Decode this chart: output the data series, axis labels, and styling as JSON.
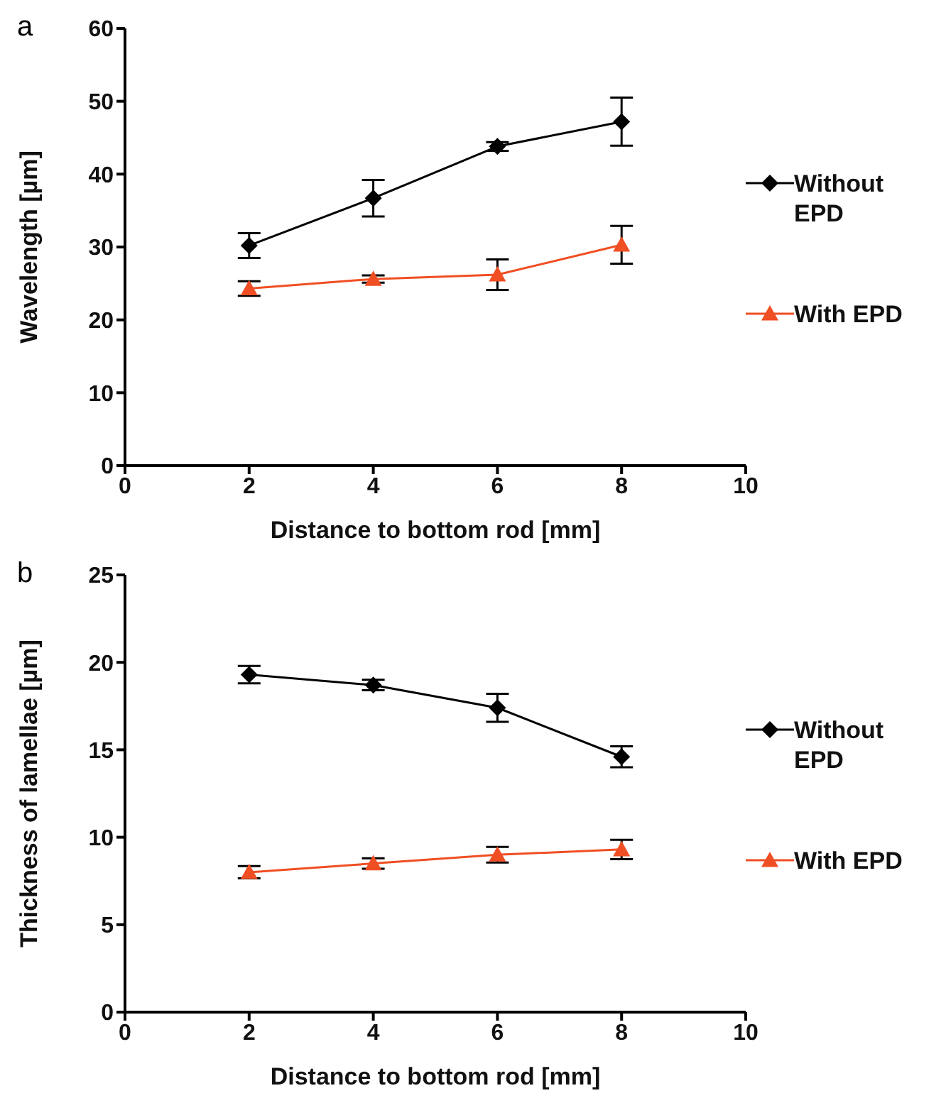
{
  "chart_data": [
    {
      "type": "line",
      "title": "a",
      "xlabel": "Distance to bottom rod [mm]",
      "ylabel": "Wavelength [µm]",
      "x": [
        2,
        4,
        6,
        8
      ],
      "xlim": [
        0,
        10
      ],
      "xticks": [
        0,
        2,
        4,
        6,
        8,
        10
      ],
      "ylim": [
        0,
        60
      ],
      "yticks": [
        0,
        10,
        20,
        30,
        40,
        50,
        60
      ],
      "grid": false,
      "legend": "right",
      "series": [
        {
          "name": "Without EPD",
          "color": "#000000",
          "marker": "diamond",
          "values": [
            30.2,
            36.7,
            43.8,
            47.2
          ],
          "errors": [
            1.7,
            2.5,
            0.6,
            3.3
          ]
        },
        {
          "name": "With EPD",
          "color": "#f04e23",
          "marker": "triangle",
          "values": [
            24.3,
            25.6,
            26.2,
            30.3
          ],
          "errors": [
            1.0,
            0.5,
            2.1,
            2.6
          ]
        }
      ]
    },
    {
      "type": "line",
      "title": "b",
      "xlabel": "Distance to bottom rod [mm]",
      "ylabel": "Thickness of lamellae [µm]",
      "x": [
        2,
        4,
        6,
        8
      ],
      "xlim": [
        0,
        10
      ],
      "xticks": [
        0,
        2,
        4,
        6,
        8,
        10
      ],
      "ylim": [
        0,
        25
      ],
      "yticks": [
        0,
        5,
        10,
        15,
        20,
        25
      ],
      "grid": false,
      "legend": "right",
      "series": [
        {
          "name": "Without EPD",
          "color": "#000000",
          "marker": "diamond",
          "values": [
            19.3,
            18.7,
            17.4,
            14.6
          ],
          "errors": [
            0.5,
            0.3,
            0.8,
            0.6
          ]
        },
        {
          "name": "With EPD",
          "color": "#f04e23",
          "marker": "triangle",
          "values": [
            8.0,
            8.5,
            9.0,
            9.3
          ],
          "errors": [
            0.35,
            0.3,
            0.45,
            0.55
          ]
        }
      ]
    }
  ]
}
